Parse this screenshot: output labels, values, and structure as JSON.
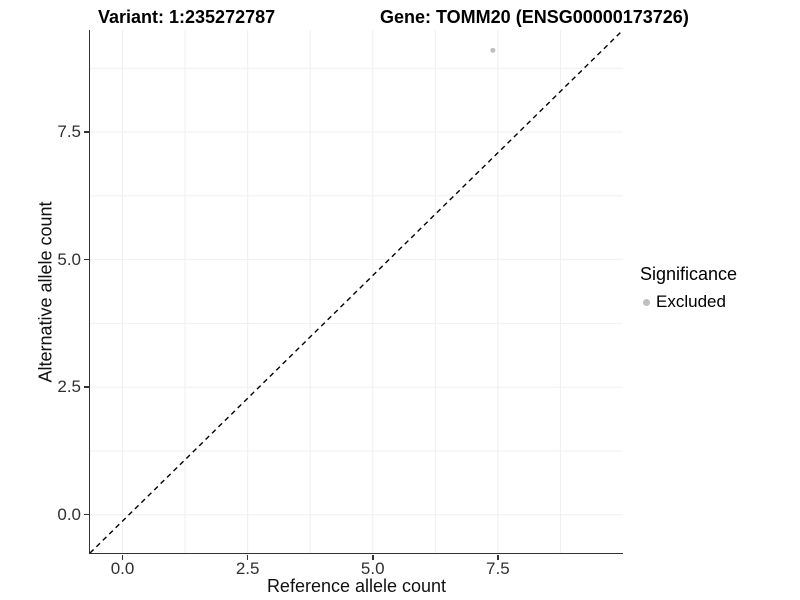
{
  "chart_data": {
    "type": "scatter",
    "title_left": "Variant: 1:235272787",
    "title_right": "Gene: TOMM20 (ENSG00000173726)",
    "xlabel": "Reference allele count",
    "ylabel": "Alternative allele count",
    "xlim": [
      -0.65,
      10.0
    ],
    "ylim": [
      -0.75,
      9.5
    ],
    "x_ticks": {
      "values": [
        0.0,
        2.5,
        5.0,
        7.5
      ],
      "labels": [
        "0.0",
        "2.5",
        "5.0",
        "7.5"
      ]
    },
    "y_ticks": {
      "values": [
        0.0,
        2.5,
        5.0,
        7.5
      ],
      "labels": [
        "0.0",
        "2.5",
        "5.0",
        "7.5"
      ]
    },
    "x_minor_gridlines": [
      1.25,
      3.75,
      6.25,
      8.75
    ],
    "y_minor_gridlines": [
      1.25,
      3.75,
      6.25,
      8.75
    ],
    "grid": {
      "show": true,
      "color": "#efefef"
    },
    "series": [
      {
        "name": "Excluded",
        "marker": "circle",
        "color": "#bfbfbf",
        "points": [
          {
            "x": 7.4,
            "y": 9.1
          }
        ]
      }
    ],
    "reference_line": {
      "kind": "identity y = x",
      "slope": 1,
      "intercept": 0,
      "linetype": "dashed",
      "color": "#000000"
    },
    "legend": {
      "title": "Significance",
      "position": "right",
      "items": [
        {
          "label": "Excluded",
          "color": "#bfbfbf",
          "marker": "circle"
        }
      ]
    },
    "axis_style": {
      "line_color": "#333333",
      "tick_color": "#333333",
      "tick_label_color": "#303030"
    }
  }
}
